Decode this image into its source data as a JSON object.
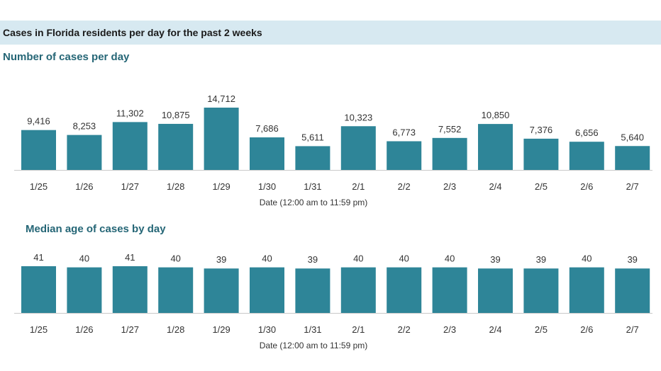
{
  "header": {
    "title": "Cases in Florida residents per day for the past 2 weeks"
  },
  "colors": {
    "bar": "#2e8598",
    "header_bg": "#d7e9f1",
    "title": "#256676",
    "axis": "#c9c9c9"
  },
  "chart_data": [
    {
      "id": "cases",
      "type": "bar",
      "title": "Number of cases per day",
      "xlabel": "Date (12:00 am to 11:59 pm)",
      "ylabel": "",
      "categories": [
        "1/25",
        "1/26",
        "1/27",
        "1/28",
        "1/29",
        "1/30",
        "1/31",
        "2/1",
        "2/2",
        "2/3",
        "2/4",
        "2/5",
        "2/6",
        "2/7"
      ],
      "values": [
        9416,
        8253,
        11302,
        10875,
        14712,
        7686,
        5611,
        10323,
        6773,
        7552,
        10850,
        7376,
        6656,
        5640
      ],
      "labels": [
        "9,416",
        "8,253",
        "11,302",
        "10,875",
        "14,712",
        "7,686",
        "5,611",
        "10,323",
        "6,773",
        "7,552",
        "10,850",
        "7,376",
        "6,656",
        "5,640"
      ],
      "ylim": [
        0,
        14712
      ],
      "grid": false,
      "legend": "none"
    },
    {
      "id": "age",
      "type": "bar",
      "title": "Median age of cases by day",
      "xlabel": "Date (12:00 am to 11:59 pm)",
      "ylabel": "",
      "categories": [
        "1/25",
        "1/26",
        "1/27",
        "1/28",
        "1/29",
        "1/30",
        "1/31",
        "2/1",
        "2/2",
        "2/3",
        "2/4",
        "2/5",
        "2/6",
        "2/7"
      ],
      "values": [
        41,
        40,
        41,
        40,
        39,
        40,
        39,
        40,
        40,
        40,
        39,
        39,
        40,
        39
      ],
      "labels": [
        "41",
        "40",
        "41",
        "40",
        "39",
        "40",
        "39",
        "40",
        "40",
        "40",
        "39",
        "39",
        "40",
        "39"
      ],
      "ylim": [
        0,
        41
      ],
      "grid": false,
      "legend": "none"
    }
  ]
}
